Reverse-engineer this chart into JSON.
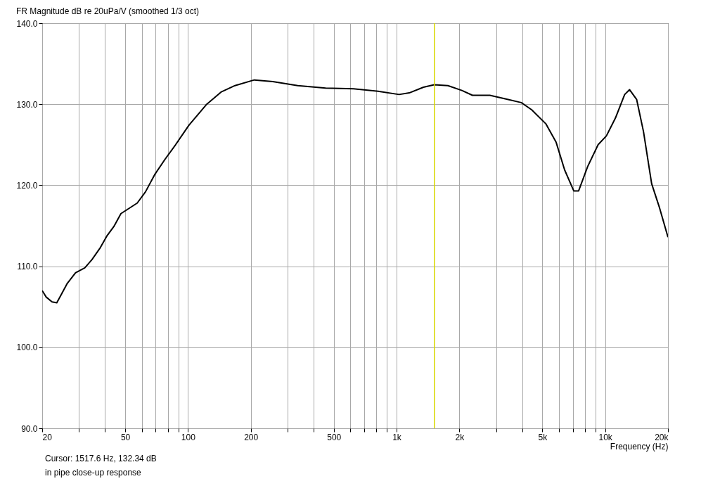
{
  "chart_data": {
    "type": "line",
    "title": "FR Magnitude dB re 20uPa/V (smoothed 1/3 oct)",
    "xlabel": "Frequency (Hz)",
    "annotations": [
      "Cursor: 1517.6 Hz, 132.34 dB",
      "in pipe close-up response"
    ],
    "log": "x",
    "grid": true,
    "xlim": [
      20,
      20000
    ],
    "ylim": [
      90,
      140
    ],
    "xticks": [
      20,
      {
        "value": 30,
        "label": null
      },
      {
        "value": 40,
        "label": null
      },
      50,
      {
        "value": 60,
        "label": null
      },
      {
        "value": 70,
        "label": null
      },
      {
        "value": 80,
        "label": null
      },
      {
        "value": 90,
        "label": null
      },
      100,
      200,
      {
        "value": 300,
        "label": null
      },
      {
        "value": 400,
        "label": null
      },
      500,
      {
        "value": 600,
        "label": null
      },
      {
        "value": 700,
        "label": null
      },
      {
        "value": 800,
        "label": null
      },
      {
        "value": 900,
        "label": null
      },
      {
        "value": 1000,
        "label": "1k"
      },
      {
        "value": 2000,
        "label": "2k"
      },
      {
        "value": 3000,
        "label": null
      },
      {
        "value": 4000,
        "label": null
      },
      {
        "value": 5000,
        "label": "5k"
      },
      {
        "value": 6000,
        "label": null
      },
      {
        "value": 7000,
        "label": null
      },
      {
        "value": 8000,
        "label": null
      },
      {
        "value": 9000,
        "label": null
      },
      {
        "value": 10000,
        "label": "10k"
      },
      {
        "value": 20000,
        "label": "20k"
      }
    ],
    "yticks": [
      {
        "value": 90,
        "label": "90.0"
      },
      {
        "value": 100,
        "label": "100.0"
      },
      {
        "value": 110,
        "label": "110.0"
      },
      {
        "value": 120,
        "label": "120.0"
      },
      {
        "value": 130,
        "label": "130.0"
      },
      {
        "value": 140,
        "label": "140.0"
      }
    ],
    "ref_lines": [
      {
        "axis": "x",
        "value": 1517.6,
        "color": "#d8d800"
      }
    ],
    "series": [
      {
        "color": "#000000",
        "x": [
          20,
          20.9,
          22.3,
          23.5,
          24.8,
          26.4,
          28.9,
          32,
          34.6,
          38,
          41,
          44.1,
          47.7,
          57.1,
          62.6,
          69.2,
          77.6,
          87.2,
          101,
          123,
          144,
          168,
          208,
          255,
          336,
          457,
          622,
          815,
          1028,
          1150,
          1346,
          1515,
          1762,
          2057,
          2310,
          2800,
          3400,
          3960,
          4450,
          5190,
          5820,
          6390,
          7070,
          7460,
          8240,
          9250,
          10140,
          11200,
          12400,
          13080,
          14150,
          15270,
          16700,
          18230,
          20000
        ],
        "values": [
          107.0,
          106.2,
          105.6,
          105.5,
          106.6,
          107.9,
          109.2,
          109.8,
          110.8,
          112.3,
          113.8,
          114.9,
          116.5,
          117.8,
          119.2,
          121.3,
          123.2,
          125.0,
          127.4,
          130.0,
          131.5,
          132.3,
          133.0,
          132.8,
          132.3,
          132.0,
          131.9,
          131.6,
          131.2,
          131.4,
          132.1,
          132.4,
          132.3,
          131.7,
          131.1,
          131.1,
          130.6,
          130.2,
          129.3,
          127.6,
          125.3,
          121.9,
          119.3,
          119.3,
          122.3,
          125.0,
          126.1,
          128.3,
          131.2,
          131.8,
          130.6,
          126.6,
          120.2,
          117.2,
          113.6
        ]
      }
    ]
  }
}
